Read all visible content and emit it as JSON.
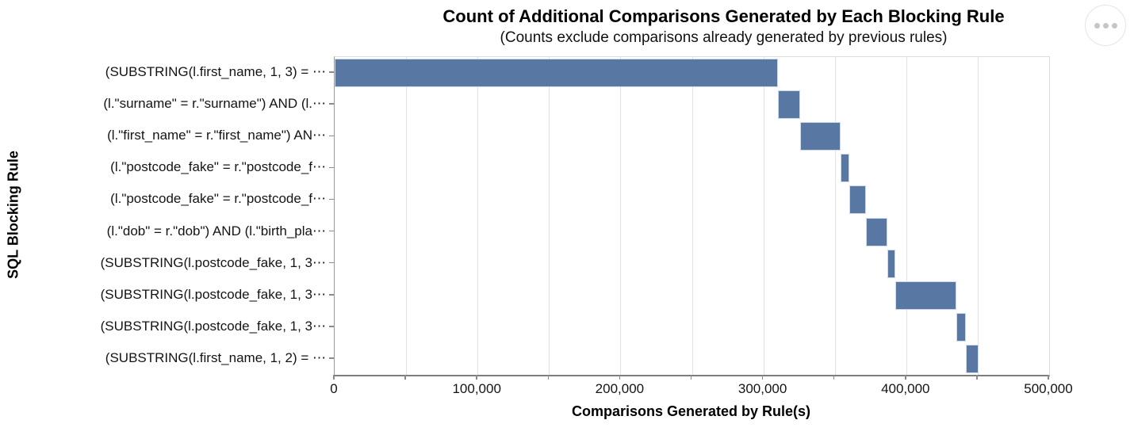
{
  "chart_data": {
    "type": "bar",
    "variant": "waterfall",
    "orientation": "horizontal",
    "title": "Count of Additional Comparisons Generated by Each Blocking Rule",
    "subtitle": "(Counts exclude comparisons already generated by previous rules)",
    "xlabel": "Comparisons Generated by Rule(s)",
    "ylabel": "SQL Blocking Rule",
    "xlim": [
      0,
      500000
    ],
    "x_tick_interval_minor": 50000,
    "x_tick_values": [
      0,
      100000,
      200000,
      300000,
      400000,
      500000
    ],
    "x_tick_labels": [
      "0",
      "100,000",
      "200,000",
      "300,000",
      "400,000",
      "500,000"
    ],
    "grid": "vertical-minor-gridlines",
    "legend": "none",
    "bar_color": "#5878a3",
    "bar_stroke_color": "#cfdbea",
    "rows": [
      {
        "label": "(SUBSTRING(l.first_name, 1, 3) = ⋯",
        "start": 0,
        "end": 310000,
        "additional_comparisons": 310000
      },
      {
        "label": "(l.\"surname\" = r.\"surname\") AND (l.⋯",
        "start": 310000,
        "end": 326000,
        "additional_comparisons": 16000
      },
      {
        "label": "(l.\"first_name\" = r.\"first_name\") AN⋯",
        "start": 326000,
        "end": 354000,
        "additional_comparisons": 28000
      },
      {
        "label": "(l.\"postcode_fake\" = r.\"postcode_f⋯",
        "start": 354000,
        "end": 360000,
        "additional_comparisons": 6000
      },
      {
        "label": "(l.\"postcode_fake\" = r.\"postcode_f⋯",
        "start": 360000,
        "end": 372000,
        "additional_comparisons": 12000
      },
      {
        "label": "(l.\"dob\" = r.\"dob\") AND (l.\"birth_pla⋯",
        "start": 372000,
        "end": 387000,
        "additional_comparisons": 15000
      },
      {
        "label": "(SUBSTRING(l.postcode_fake, 1, 3⋯",
        "start": 387000,
        "end": 392500,
        "additional_comparisons": 5500
      },
      {
        "label": "(SUBSTRING(l.postcode_fake, 1, 3⋯",
        "start": 392500,
        "end": 435000,
        "additional_comparisons": 42500
      },
      {
        "label": "(SUBSTRING(l.postcode_fake, 1, 3⋯",
        "start": 435000,
        "end": 442000,
        "additional_comparisons": 7000
      },
      {
        "label": "(SUBSTRING(l.first_name, 1, 2) = ⋯",
        "start": 442000,
        "end": 450500,
        "additional_comparisons": 8500
      }
    ]
  },
  "menu": {
    "icon": "ellipsis-icon"
  }
}
